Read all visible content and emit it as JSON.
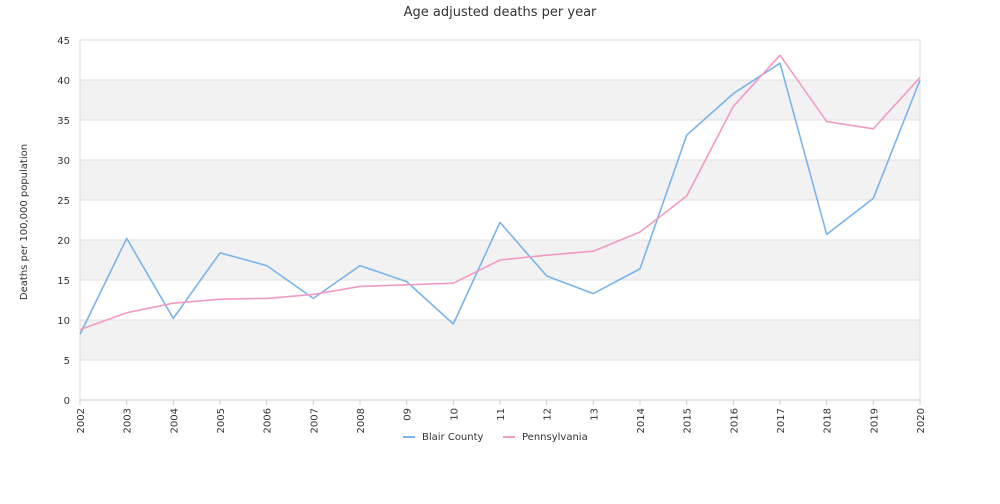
{
  "chart_data": {
    "type": "line",
    "title": "Age adjusted deaths per year",
    "xlabel": "",
    "ylabel": "Deaths per 100,000 population",
    "ylim": [
      0,
      45
    ],
    "yticks": [
      0,
      5,
      10,
      15,
      20,
      25,
      30,
      35,
      40,
      45
    ],
    "categories": [
      "2002",
      "2003",
      "2004",
      "2005",
      "2006",
      "2007",
      "2008",
      "09",
      "10",
      "11",
      "12",
      "13",
      "2014",
      "2015",
      "2016",
      "2017",
      "2018",
      "2019",
      "2020"
    ],
    "grid": "horizontal alternating bands",
    "legend": "bottom-center",
    "series": [
      {
        "name": "Blair County",
        "color": "#7ab4ea",
        "values": [
          8.2,
          20.2,
          10.2,
          18.4,
          16.8,
          12.7,
          16.8,
          14.8,
          9.5,
          22.2,
          15.5,
          13.3,
          16.4,
          33.1,
          38.3,
          42.1,
          20.7,
          25.2,
          40.0
        ]
      },
      {
        "name": "Pennsylvania",
        "color": "#f29ac6",
        "values": [
          8.8,
          10.9,
          12.1,
          12.6,
          12.7,
          13.2,
          14.2,
          14.4,
          14.6,
          17.5,
          18.1,
          18.6,
          21.0,
          25.5,
          36.7,
          43.1,
          34.8,
          33.9,
          40.3
        ]
      }
    ]
  }
}
